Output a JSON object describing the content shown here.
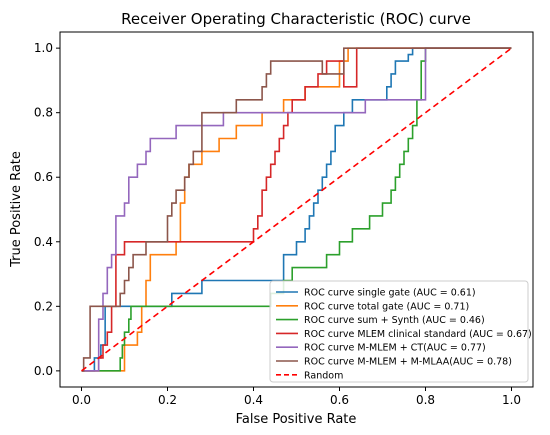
{
  "chart_data": {
    "type": "line",
    "title": "Receiver Operating Characteristic (ROC) curve",
    "xlabel": "False Positive Rate",
    "ylabel": "True Positive Rate",
    "xlim": [
      -0.05,
      1.05
    ],
    "ylim": [
      -0.05,
      1.05
    ],
    "xticks": [
      "0.0",
      "0.2",
      "0.4",
      "0.6",
      "0.8",
      "1.0"
    ],
    "yticks": [
      "0.0",
      "0.2",
      "0.4",
      "0.6",
      "0.8",
      "1.0"
    ],
    "grid": false,
    "legend_position": "lower right",
    "series": [
      {
        "name": "ROC curve single gate (AUC = 0.61)",
        "color": "#1f77b4",
        "dash": "solid",
        "x": [
          0,
          0.03,
          0.03,
          0.045,
          0.045,
          0.055,
          0.055,
          0.1,
          0.1,
          0.21,
          0.21,
          0.28,
          0.28,
          0.47,
          0.47,
          0.5,
          0.5,
          0.52,
          0.52,
          0.53,
          0.53,
          0.54,
          0.54,
          0.55,
          0.55,
          0.56,
          0.56,
          0.57,
          0.57,
          0.58,
          0.58,
          0.59,
          0.59,
          0.61,
          0.61,
          0.63,
          0.63,
          0.71,
          0.71,
          0.72,
          0.72,
          0.73,
          0.73,
          0.76,
          0.76,
          0.77,
          0.77,
          0.8,
          0.8,
          1.0
        ],
        "y": [
          0,
          0,
          0.04,
          0.04,
          0.08,
          0.08,
          0.2,
          0.2,
          0.2,
          0.2,
          0.24,
          0.24,
          0.28,
          0.28,
          0.36,
          0.36,
          0.4,
          0.4,
          0.44,
          0.44,
          0.48,
          0.48,
          0.52,
          0.52,
          0.56,
          0.56,
          0.6,
          0.6,
          0.64,
          0.64,
          0.68,
          0.68,
          0.76,
          0.76,
          0.8,
          0.8,
          0.84,
          0.84,
          0.88,
          0.88,
          0.92,
          0.92,
          0.96,
          0.96,
          0.98,
          0.98,
          1.0,
          1.0,
          1.0,
          1.0
        ]
      },
      {
        "name": "ROC curve total gate (AUC = 0.71)",
        "color": "#ff7f0e",
        "dash": "solid",
        "x": [
          0,
          0.1,
          0.1,
          0.13,
          0.13,
          0.14,
          0.14,
          0.15,
          0.15,
          0.16,
          0.16,
          0.22,
          0.22,
          0.23,
          0.23,
          0.24,
          0.24,
          0.25,
          0.25,
          0.28,
          0.28,
          0.32,
          0.32,
          0.36,
          0.36,
          0.42,
          0.42,
          0.47,
          0.47,
          0.52,
          0.52,
          0.6,
          0.6,
          0.62,
          0.62,
          0.69,
          0.69,
          1.0
        ],
        "y": [
          0,
          0,
          0.08,
          0.08,
          0.12,
          0.12,
          0.2,
          0.2,
          0.28,
          0.28,
          0.36,
          0.36,
          0.4,
          0.4,
          0.52,
          0.52,
          0.6,
          0.6,
          0.64,
          0.64,
          0.68,
          0.68,
          0.72,
          0.72,
          0.76,
          0.76,
          0.8,
          0.8,
          0.84,
          0.84,
          0.88,
          0.88,
          0.96,
          0.96,
          1.0,
          1.0,
          1.0,
          1.0
        ]
      },
      {
        "name": "ROC curve sum + Synth (AUC = 0.46)",
        "color": "#2ca02c",
        "dash": "solid",
        "x": [
          0,
          0.09,
          0.09,
          0.095,
          0.095,
          0.1,
          0.1,
          0.11,
          0.11,
          0.115,
          0.115,
          0.12,
          0.12,
          0.125,
          0.125,
          0.44,
          0.44,
          0.47,
          0.47,
          0.49,
          0.49,
          0.57,
          0.57,
          0.6,
          0.6,
          0.63,
          0.63,
          0.67,
          0.67,
          0.7,
          0.7,
          0.72,
          0.72,
          0.73,
          0.73,
          0.74,
          0.74,
          0.75,
          0.75,
          0.76,
          0.76,
          0.77,
          0.77,
          0.78,
          0.78,
          0.79,
          0.79,
          0.8,
          0.8,
          1.0
        ],
        "y": [
          0,
          0,
          0.04,
          0.04,
          0.08,
          0.08,
          0.12,
          0.12,
          0.16,
          0.16,
          0.2,
          0.2,
          0.2,
          0.2,
          0.2,
          0.2,
          0.24,
          0.24,
          0.28,
          0.28,
          0.32,
          0.32,
          0.36,
          0.36,
          0.4,
          0.4,
          0.44,
          0.44,
          0.48,
          0.48,
          0.52,
          0.52,
          0.56,
          0.56,
          0.6,
          0.6,
          0.64,
          0.64,
          0.68,
          0.68,
          0.72,
          0.72,
          0.76,
          0.76,
          0.84,
          0.84,
          0.96,
          0.96,
          1.0,
          1.0
        ]
      },
      {
        "name": "ROC curve MLEM clinical standard (AUC = 0.67)",
        "color": "#d62728",
        "dash": "solid",
        "x": [
          0,
          0.04,
          0.04,
          0.05,
          0.05,
          0.06,
          0.06,
          0.07,
          0.07,
          0.08,
          0.08,
          0.1,
          0.1,
          0.4,
          0.4,
          0.41,
          0.41,
          0.42,
          0.42,
          0.43,
          0.43,
          0.44,
          0.44,
          0.45,
          0.45,
          0.46,
          0.46,
          0.47,
          0.47,
          0.48,
          0.48,
          0.49,
          0.49,
          0.52,
          0.52,
          0.55,
          0.55,
          0.57,
          0.57,
          0.61,
          0.61,
          0.64,
          0.64,
          0.69,
          0.69,
          1.0
        ],
        "y": [
          0,
          0,
          0.04,
          0.04,
          0.08,
          0.08,
          0.12,
          0.12,
          0.2,
          0.2,
          0.36,
          0.36,
          0.4,
          0.4,
          0.44,
          0.44,
          0.48,
          0.48,
          0.56,
          0.56,
          0.6,
          0.6,
          0.64,
          0.64,
          0.68,
          0.68,
          0.72,
          0.72,
          0.76,
          0.76,
          0.8,
          0.8,
          0.84,
          0.84,
          0.88,
          0.88,
          0.92,
          0.92,
          0.96,
          0.96,
          0.88,
          0.88,
          1.0,
          1.0,
          1.0,
          1.0
        ]
      },
      {
        "name": "ROC curve M-MLEM + CT(AUC = 0.77)",
        "color": "#9467bd",
        "dash": "solid",
        "x": [
          0,
          0.04,
          0.04,
          0.05,
          0.05,
          0.06,
          0.06,
          0.07,
          0.07,
          0.08,
          0.08,
          0.1,
          0.1,
          0.11,
          0.11,
          0.13,
          0.13,
          0.15,
          0.15,
          0.16,
          0.16,
          0.22,
          0.22,
          0.33,
          0.33,
          0.34,
          0.34,
          0.66,
          0.66,
          0.8,
          0.8,
          1.0
        ],
        "y": [
          0,
          0,
          0.16,
          0.16,
          0.24,
          0.24,
          0.32,
          0.32,
          0.36,
          0.36,
          0.48,
          0.48,
          0.52,
          0.52,
          0.6,
          0.6,
          0.64,
          0.64,
          0.68,
          0.68,
          0.72,
          0.72,
          0.76,
          0.76,
          0.8,
          0.8,
          0.8,
          0.8,
          0.84,
          0.84,
          1.0,
          1.0
        ]
      },
      {
        "name": "ROC curve M-MLEM + M-MLAA(AUC = 0.78)",
        "color": "#8c564b",
        "dash": "solid",
        "x": [
          0,
          0.005,
          0.005,
          0.02,
          0.02,
          0.04,
          0.04,
          0.09,
          0.09,
          0.1,
          0.1,
          0.11,
          0.11,
          0.12,
          0.12,
          0.15,
          0.15,
          0.2,
          0.2,
          0.21,
          0.21,
          0.22,
          0.22,
          0.24,
          0.24,
          0.25,
          0.25,
          0.26,
          0.26,
          0.28,
          0.28,
          0.36,
          0.36,
          0.42,
          0.42,
          0.43,
          0.43,
          0.44,
          0.44,
          0.56,
          0.56,
          0.61,
          0.61,
          0.66,
          0.66,
          0.75,
          0.75,
          0.82,
          0.82,
          1.0
        ],
        "y": [
          0,
          0,
          0.04,
          0.04,
          0.2,
          0.2,
          0.2,
          0.2,
          0.24,
          0.24,
          0.28,
          0.28,
          0.32,
          0.32,
          0.36,
          0.36,
          0.4,
          0.4,
          0.48,
          0.48,
          0.52,
          0.52,
          0.56,
          0.56,
          0.6,
          0.6,
          0.64,
          0.64,
          0.68,
          0.68,
          0.8,
          0.8,
          0.84,
          0.84,
          0.88,
          0.88,
          0.92,
          0.92,
          0.96,
          0.96,
          0.92,
          0.92,
          1.0,
          1.0,
          1.0,
          1.0,
          1.0,
          1.0,
          1.0,
          1.0
        ]
      },
      {
        "name": "Random",
        "color": "#ff0000",
        "dash": "dashed",
        "x": [
          0,
          1
        ],
        "y": [
          0,
          1
        ]
      }
    ]
  }
}
